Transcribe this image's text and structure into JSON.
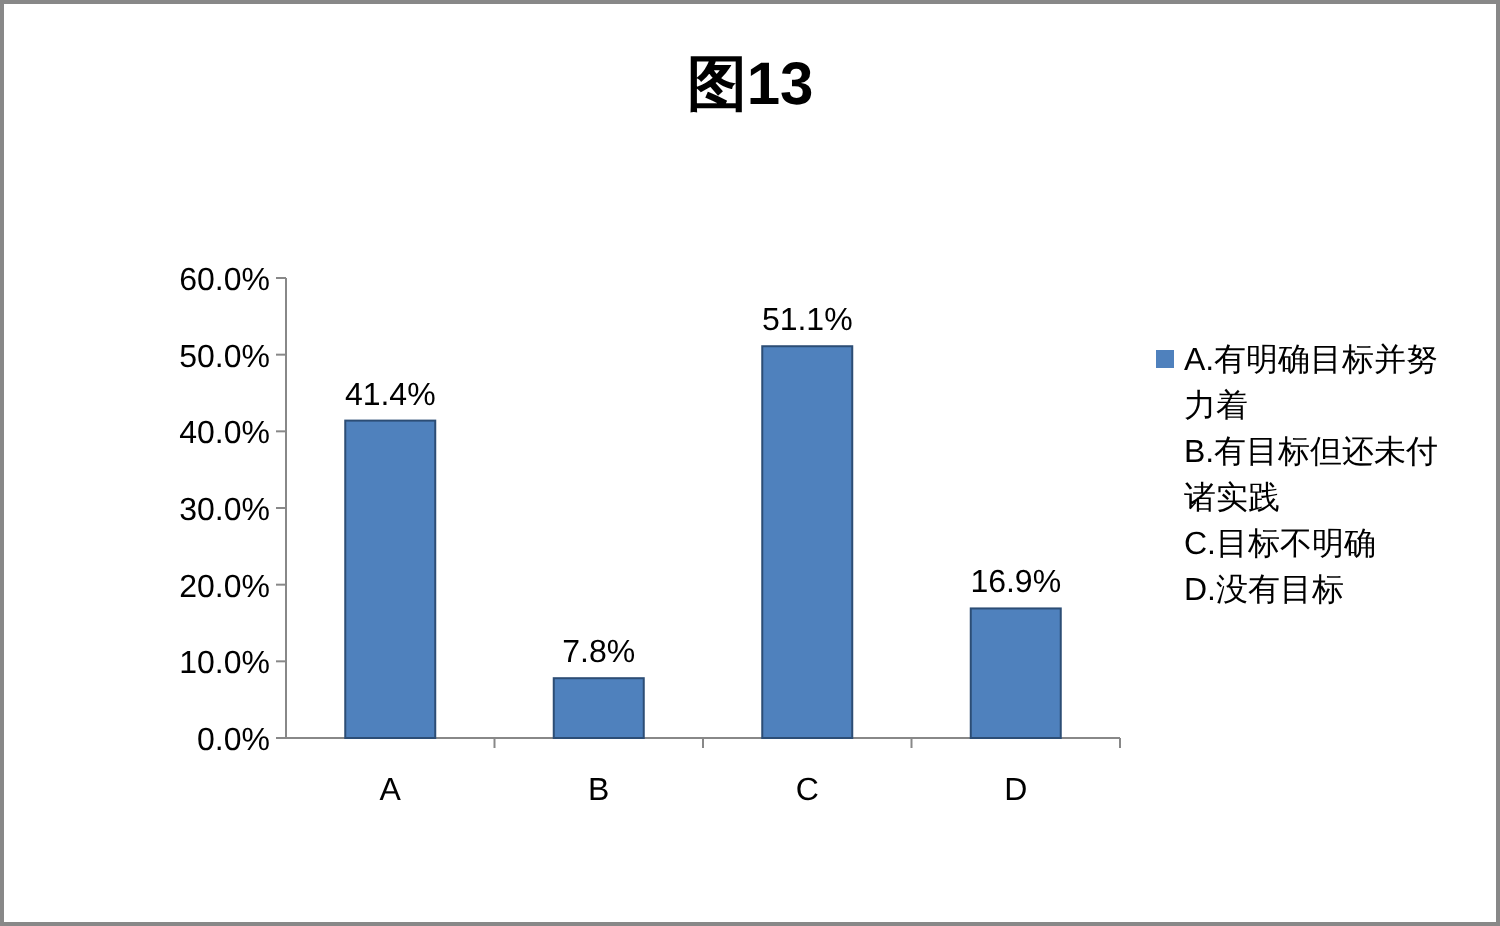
{
  "chart_data": {
    "type": "bar",
    "title": "图13",
    "categories": [
      "A",
      "B",
      "C",
      "D"
    ],
    "series": [
      {
        "name": "A.有明确目标并努力着 B.有目标但还未付诸实践 C.目标不明确 D.没有目标",
        "color": "#4f81bd",
        "values": [
          41.4,
          7.8,
          51.1,
          16.9
        ],
        "value_labels": [
          "41.4%",
          "7.8%",
          "51.1%",
          "16.9%"
        ]
      }
    ],
    "ylim": [
      0,
      60
    ],
    "yticks": [
      {
        "value": 0,
        "label": "0.0%"
      },
      {
        "value": 10,
        "label": "10.0%"
      },
      {
        "value": 20,
        "label": "20.0%"
      },
      {
        "value": 30,
        "label": "30.0%"
      },
      {
        "value": 40,
        "label": "40.0%"
      },
      {
        "value": 50,
        "label": "50.0%"
      },
      {
        "value": 60,
        "label": "60.0%"
      }
    ],
    "grid": false,
    "legend": "right"
  }
}
